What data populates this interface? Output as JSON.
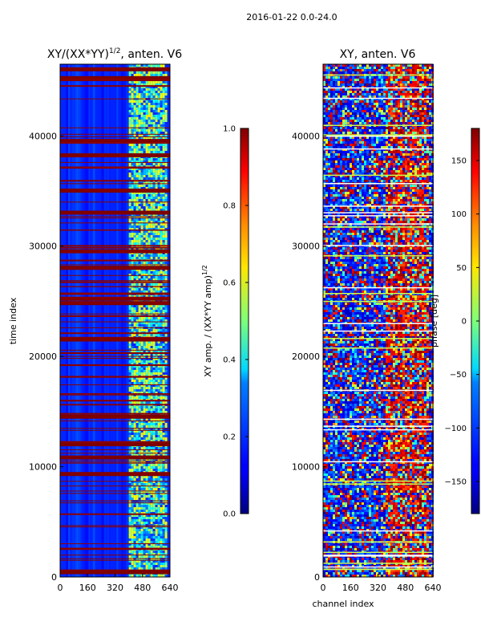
{
  "suptitle": "2016-01-22 0.0-24.0",
  "chart_data": [
    {
      "type": "heatmap",
      "title": "XY/(XX*YY)^{1/2}, anten. V6",
      "title_main": "XY/(XX*YY)",
      "title_exp": "1/2",
      "title_tail": ", anten. V6",
      "xlabel": "",
      "ylabel": "time index",
      "xlim": [
        0,
        640
      ],
      "ylim": [
        0,
        46500
      ],
      "xticks": [
        0,
        160,
        320,
        480,
        640
      ],
      "yticks": [
        0,
        10000,
        20000,
        30000,
        40000
      ],
      "colormap": "jet",
      "description_bands_saturated_rows": [
        46000,
        45200,
        39500,
        38200,
        35000,
        33000,
        29500,
        28000,
        25200,
        24800,
        21500,
        14500,
        12000,
        10800,
        9300,
        400
      ],
      "colorbar": {
        "label": "XY amp. / (XX*YY amp)^{1/2}",
        "label_main": "XY amp. / (XX*YY amp)",
        "label_exp": "1/2",
        "range": [
          0.0,
          1.0
        ],
        "ticks": [
          0.0,
          0.2,
          0.4,
          0.6,
          0.8,
          1.0
        ],
        "tick_labels": [
          "0.0",
          "0.2",
          "0.4",
          "0.6",
          "0.8",
          "1.0"
        ]
      }
    },
    {
      "type": "heatmap",
      "title": "XY, anten. V6",
      "xlabel": "channel index",
      "ylabel": "",
      "xlim": [
        0,
        640
      ],
      "ylim": [
        0,
        46500
      ],
      "xticks": [
        0,
        160,
        320,
        480,
        640
      ],
      "yticks": [
        0,
        10000,
        20000,
        30000,
        40000
      ],
      "colormap": "jet",
      "colorbar": {
        "label": "phase [deg]",
        "range": [
          -180,
          180
        ],
        "ticks": [
          -150,
          -100,
          -50,
          0,
          50,
          100,
          150
        ],
        "tick_labels": [
          "−150",
          "−100",
          "−50",
          "0",
          "50",
          "100",
          "150"
        ]
      }
    }
  ]
}
